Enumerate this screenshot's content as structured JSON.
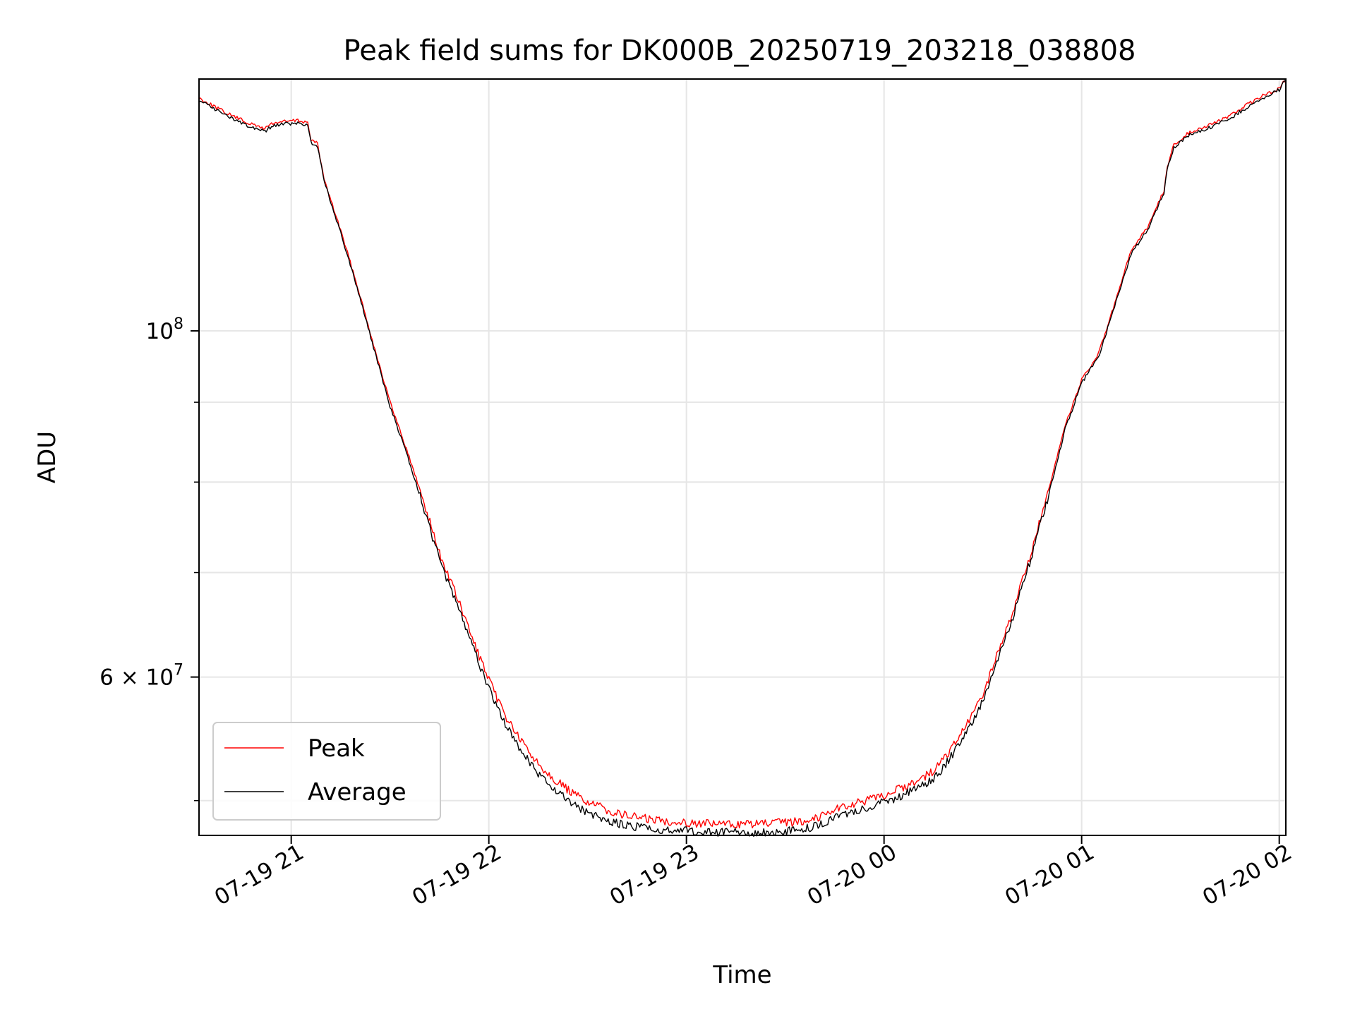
{
  "chart_data": {
    "type": "line",
    "title": "Peak field sums for DK000B_20250719_203218_038808",
    "xlabel": "Time",
    "ylabel": "ADU",
    "y_scale": "log",
    "x_range": [
      "2025-07-19 20:32",
      "2025-07-20 02:02"
    ],
    "ylim": [
      47500000,
      145000000
    ],
    "x_ticks": [
      {
        "t": "2025-07-19 21:00",
        "label": "07-19 21"
      },
      {
        "t": "2025-07-19 22:00",
        "label": "07-19 22"
      },
      {
        "t": "2025-07-19 23:00",
        "label": "07-19 23"
      },
      {
        "t": "2025-07-20 00:00",
        "label": "07-20 00"
      },
      {
        "t": "2025-07-20 01:00",
        "label": "07-20 01"
      },
      {
        "t": "2025-07-20 02:00",
        "label": "07-20 02"
      }
    ],
    "y_major_ticks": [
      {
        "value": 100000000,
        "base": "10",
        "exp": "8",
        "coef": ""
      },
      {
        "value": 60000000,
        "base": "10",
        "exp": "7",
        "coef": "6 × "
      }
    ],
    "y_minor_ticks": [
      50000000,
      70000000,
      80000000,
      90000000
    ],
    "grid": true,
    "legend": {
      "position": "lower-left"
    },
    "series": [
      {
        "name": "Peak",
        "color": "#ff0000",
        "points": [
          [
            "2025-07-19 20:32",
            141000000
          ],
          [
            "2025-07-19 20:36",
            139500000
          ],
          [
            "2025-07-19 20:40",
            138000000
          ],
          [
            "2025-07-19 20:44",
            136800000
          ],
          [
            "2025-07-19 20:48",
            135600000
          ],
          [
            "2025-07-19 20:52",
            134800000
          ],
          [
            "2025-07-19 20:54",
            135800000
          ],
          [
            "2025-07-19 20:58",
            136200000
          ],
          [
            "2025-07-19 21:02",
            136400000
          ],
          [
            "2025-07-19 21:05",
            136000000
          ],
          [
            "2025-07-19 21:06",
            132500000
          ],
          [
            "2025-07-19 21:08",
            131800000
          ],
          [
            "2025-07-19 21:10",
            125000000
          ],
          [
            "2025-07-19 21:15",
            116000000
          ],
          [
            "2025-07-19 21:20",
            107000000
          ],
          [
            "2025-07-19 21:25",
            98000000
          ],
          [
            "2025-07-19 21:30",
            90000000
          ],
          [
            "2025-07-19 21:35",
            84000000
          ],
          [
            "2025-07-19 21:40",
            78000000
          ],
          [
            "2025-07-19 21:45",
            72000000
          ],
          [
            "2025-07-19 21:50",
            67800000
          ],
          [
            "2025-07-19 21:55",
            63500000
          ],
          [
            "2025-07-19 22:00",
            59700000
          ],
          [
            "2025-07-19 22:05",
            56700000
          ],
          [
            "2025-07-19 22:10",
            54500000
          ],
          [
            "2025-07-19 22:15",
            52800000
          ],
          [
            "2025-07-19 22:20",
            51600000
          ],
          [
            "2025-07-19 22:25",
            50600000
          ],
          [
            "2025-07-19 22:30",
            49900000
          ],
          [
            "2025-07-19 22:35",
            49400000
          ],
          [
            "2025-07-19 22:40",
            49000000
          ],
          [
            "2025-07-19 22:45",
            48800000
          ],
          [
            "2025-07-19 22:50",
            48600000
          ],
          [
            "2025-07-19 23:00",
            48400000
          ],
          [
            "2025-07-19 23:10",
            48300000
          ],
          [
            "2025-07-19 23:20",
            48300000
          ],
          [
            "2025-07-19 23:30",
            48400000
          ],
          [
            "2025-07-19 23:35",
            48500000
          ],
          [
            "2025-07-19 23:40",
            48800000
          ],
          [
            "2025-07-19 23:45",
            49400000
          ],
          [
            "2025-07-19 23:50",
            49700000
          ],
          [
            "2025-07-19 23:55",
            50000000
          ],
          [
            "2025-07-20 00:00",
            50400000
          ],
          [
            "2025-07-20 00:05",
            50900000
          ],
          [
            "2025-07-20 00:10",
            51500000
          ],
          [
            "2025-07-20 00:15",
            52200000
          ],
          [
            "2025-07-20 00:20",
            53800000
          ],
          [
            "2025-07-20 00:25",
            55800000
          ],
          [
            "2025-07-20 00:30",
            58500000
          ],
          [
            "2025-07-20 00:35",
            62500000
          ],
          [
            "2025-07-20 00:40",
            67000000
          ],
          [
            "2025-07-20 00:45",
            72500000
          ],
          [
            "2025-07-20 00:50",
            79000000
          ],
          [
            "2025-07-20 00:55",
            87000000
          ],
          [
            "2025-07-20 01:00",
            93000000
          ],
          [
            "2025-07-20 01:05",
            96500000
          ],
          [
            "2025-07-20 01:10",
            104000000
          ],
          [
            "2025-07-20 01:15",
            112500000
          ],
          [
            "2025-07-20 01:18",
            115000000
          ],
          [
            "2025-07-20 01:20",
            116500000
          ],
          [
            "2025-07-20 01:25",
            123000000
          ],
          [
            "2025-07-20 01:26",
            127500000
          ],
          [
            "2025-07-20 01:28",
            131500000
          ],
          [
            "2025-07-20 01:32",
            133800000
          ],
          [
            "2025-07-20 01:36",
            134800000
          ],
          [
            "2025-07-20 01:40",
            135800000
          ],
          [
            "2025-07-20 01:45",
            137300000
          ],
          [
            "2025-07-20 01:50",
            139500000
          ],
          [
            "2025-07-20 01:55",
            141500000
          ],
          [
            "2025-07-20 02:00",
            143000000
          ],
          [
            "2025-07-20 02:02",
            145000000
          ]
        ]
      },
      {
        "name": "Average",
        "color": "#000000",
        "points": [
          [
            "2025-07-19 20:32",
            140500000
          ],
          [
            "2025-07-19 20:36",
            139000000
          ],
          [
            "2025-07-19 20:40",
            137500000
          ],
          [
            "2025-07-19 20:44",
            136300000
          ],
          [
            "2025-07-19 20:48",
            135000000
          ],
          [
            "2025-07-19 20:52",
            134200000
          ],
          [
            "2025-07-19 20:54",
            135200000
          ],
          [
            "2025-07-19 20:58",
            135700000
          ],
          [
            "2025-07-19 21:02",
            135900000
          ],
          [
            "2025-07-19 21:05",
            135500000
          ],
          [
            "2025-07-19 21:06",
            132000000
          ],
          [
            "2025-07-19 21:08",
            131300000
          ],
          [
            "2025-07-19 21:10",
            124600000
          ],
          [
            "2025-07-19 21:15",
            115600000
          ],
          [
            "2025-07-19 21:20",
            106600000
          ],
          [
            "2025-07-19 21:25",
            97600000
          ],
          [
            "2025-07-19 21:30",
            89500000
          ],
          [
            "2025-07-19 21:35",
            83500000
          ],
          [
            "2025-07-19 21:40",
            77300000
          ],
          [
            "2025-07-19 21:45",
            71300000
          ],
          [
            "2025-07-19 21:50",
            67000000
          ],
          [
            "2025-07-19 21:55",
            62800000
          ],
          [
            "2025-07-19 22:00",
            59000000
          ],
          [
            "2025-07-19 22:05",
            56000000
          ],
          [
            "2025-07-19 22:10",
            53700000
          ],
          [
            "2025-07-19 22:15",
            52000000
          ],
          [
            "2025-07-19 22:20",
            50800000
          ],
          [
            "2025-07-19 22:25",
            49800000
          ],
          [
            "2025-07-19 22:30",
            49100000
          ],
          [
            "2025-07-19 22:35",
            48600000
          ],
          [
            "2025-07-19 22:40",
            48300000
          ],
          [
            "2025-07-19 22:45",
            48100000
          ],
          [
            "2025-07-19 22:50",
            47900000
          ],
          [
            "2025-07-19 23:00",
            47800000
          ],
          [
            "2025-07-19 23:10",
            47700000
          ],
          [
            "2025-07-19 23:20",
            47700000
          ],
          [
            "2025-07-19 23:30",
            47800000
          ],
          [
            "2025-07-19 23:35",
            47900000
          ],
          [
            "2025-07-19 23:40",
            48200000
          ],
          [
            "2025-07-19 23:45",
            48800000
          ],
          [
            "2025-07-19 23:50",
            49100000
          ],
          [
            "2025-07-19 23:55",
            49500000
          ],
          [
            "2025-07-20 00:00",
            49900000
          ],
          [
            "2025-07-20 00:05",
            50300000
          ],
          [
            "2025-07-20 00:10",
            50900000
          ],
          [
            "2025-07-20 00:15",
            51600000
          ],
          [
            "2025-07-20 00:20",
            53200000
          ],
          [
            "2025-07-20 00:25",
            55200000
          ],
          [
            "2025-07-20 00:30",
            57900000
          ],
          [
            "2025-07-20 00:35",
            61900000
          ],
          [
            "2025-07-20 00:40",
            66400000
          ],
          [
            "2025-07-20 00:45",
            72000000
          ],
          [
            "2025-07-20 00:50",
            78500000
          ],
          [
            "2025-07-20 00:55",
            86500000
          ],
          [
            "2025-07-20 01:00",
            92600000
          ],
          [
            "2025-07-20 01:05",
            96100000
          ],
          [
            "2025-07-20 01:10",
            103600000
          ],
          [
            "2025-07-20 01:15",
            112000000
          ],
          [
            "2025-07-20 01:18",
            114500000
          ],
          [
            "2025-07-20 01:20",
            116000000
          ],
          [
            "2025-07-20 01:25",
            122600000
          ],
          [
            "2025-07-20 01:26",
            127000000
          ],
          [
            "2025-07-20 01:28",
            131000000
          ],
          [
            "2025-07-20 01:32",
            133300000
          ],
          [
            "2025-07-20 01:36",
            134300000
          ],
          [
            "2025-07-20 01:40",
            135300000
          ],
          [
            "2025-07-20 01:45",
            136800000
          ],
          [
            "2025-07-20 01:50",
            139000000
          ],
          [
            "2025-07-20 01:55",
            141000000
          ],
          [
            "2025-07-20 02:00",
            142700000
          ],
          [
            "2025-07-20 02:02",
            145000000
          ]
        ]
      }
    ]
  }
}
